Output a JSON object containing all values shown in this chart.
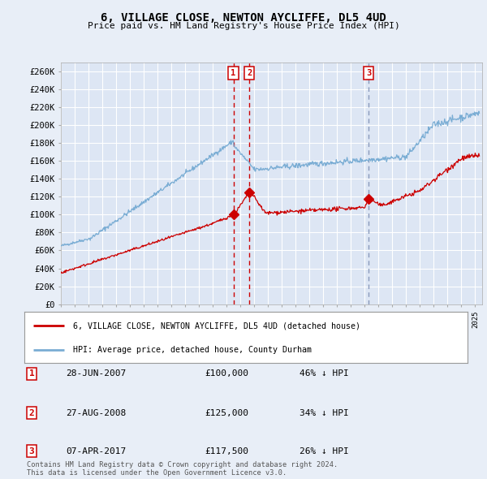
{
  "title": "6, VILLAGE CLOSE, NEWTON AYCLIFFE, DL5 4UD",
  "subtitle": "Price paid vs. HM Land Registry's House Price Index (HPI)",
  "legend_line1": "6, VILLAGE CLOSE, NEWTON AYCLIFFE, DL5 4UD (detached house)",
  "legend_line2": "HPI: Average price, detached house, County Durham",
  "footer": "Contains HM Land Registry data © Crown copyright and database right 2024.\nThis data is licensed under the Open Government Licence v3.0.",
  "transactions": [
    {
      "num": 1,
      "date": "28-JUN-2007",
      "price": 100000,
      "pct": "46%",
      "x_year": 2007.49
    },
    {
      "num": 2,
      "date": "27-AUG-2008",
      "price": 125000,
      "pct": "34%",
      "x_year": 2008.65
    },
    {
      "num": 3,
      "date": "07-APR-2017",
      "price": 117500,
      "pct": "26%",
      "x_year": 2017.27
    }
  ],
  "hpi_color": "#7aadd4",
  "sale_color": "#cc0000",
  "bg_color": "#e8eef7",
  "plot_bg": "#dde6f4",
  "grid_color": "#ffffff",
  "ylim": [
    0,
    270000
  ],
  "xlim_start": 1995,
  "xlim_end": 2025.5
}
